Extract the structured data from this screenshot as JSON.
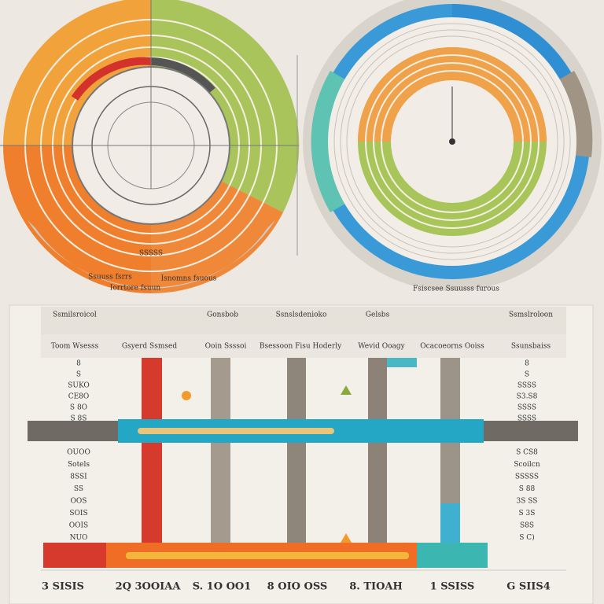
{
  "left_dial": {
    "labels": [
      "Ssuuss fsrrs",
      "Iorrtore fsuun",
      "Isnomns fsuous"
    ],
    "center_label": "SSSSS"
  },
  "right_dial": {
    "labels": [
      "Fsiscsee Ssuusss furous"
    ]
  },
  "table": {
    "headers": [
      "Ssmilsroicol",
      "Gonsbob",
      "Ssnslsdenioko",
      "Gelsbs",
      "Ssmslroloon"
    ],
    "subheaders": [
      "Toom Wsesss",
      "Gsyerd Ssmsed",
      "Ooin Ssssoi",
      "Bsessoon Fisu Hoderly",
      "Wevid Ooagy",
      "Ocacoeorns Ooiss",
      "Ssunsbaiss"
    ],
    "left_column": [
      "8",
      "S",
      "SUKO",
      "CE8O",
      "S 8O",
      "S 8S",
      "OUOO",
      "Sotels",
      "8SSI",
      "SS",
      "OOS",
      "SOIS",
      "OOIS",
      "NUO"
    ],
    "right_column": [
      "8",
      "S",
      "SSSS",
      "S3.S8",
      "SSSS",
      "SSSS",
      "S CS8",
      "Scoilcn",
      "SSSSS",
      "S 88",
      "3S SS",
      "S 3S",
      "S8S",
      "S C)"
    ],
    "footer": [
      "3 SISIS",
      "2Q 3OOIAA",
      "S. 1O OO1",
      "8 OIO OSS",
      "8. TIOAH",
      "1 SSISS",
      "G SIIS4"
    ]
  }
}
